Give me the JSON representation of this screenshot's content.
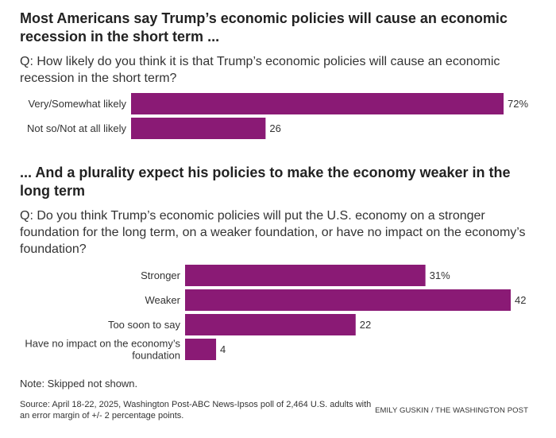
{
  "chart_data": [
    {
      "type": "bar",
      "title": "Most Americans say Trump’s economic policies will cause an economic recession in the short term ...",
      "question": "Q: How likely do you think it is that Trump’s economic policies will cause an economic recession in the short term?",
      "categories": [
        "Very/Somewhat likely",
        "Not so/Not at all likely"
      ],
      "values": [
        72,
        26
      ],
      "value_labels": [
        "72%",
        "26"
      ],
      "xlim": [
        0,
        72
      ],
      "bar_color": "#8a1a75"
    },
    {
      "type": "bar",
      "title": "... And a plurality expect his policies to make the economy weaker in the long term",
      "question": "Q: Do you think Trump’s economic policies will put the U.S. economy on a stronger foundation for the long term, on a weaker foundation, or have no impact on the economy’s foundation?",
      "categories": [
        "Stronger",
        "Weaker",
        "Too soon to say",
        "Have no impact on the economy’s foundation"
      ],
      "values": [
        31,
        42,
        22,
        4
      ],
      "value_labels": [
        "31%",
        "42",
        "22",
        "4"
      ],
      "xlim": [
        0,
        42
      ],
      "bar_color": "#8a1a75"
    }
  ],
  "note": "Note: Skipped not shown.",
  "source": "Source: April 18-22, 2025, Washington Post-ABC News-Ipsos poll of 2,464 U.S. adults with an error margin of +/- 2 percentage points.",
  "credit": "EMILY GUSKIN / THE WASHINGTON POST"
}
